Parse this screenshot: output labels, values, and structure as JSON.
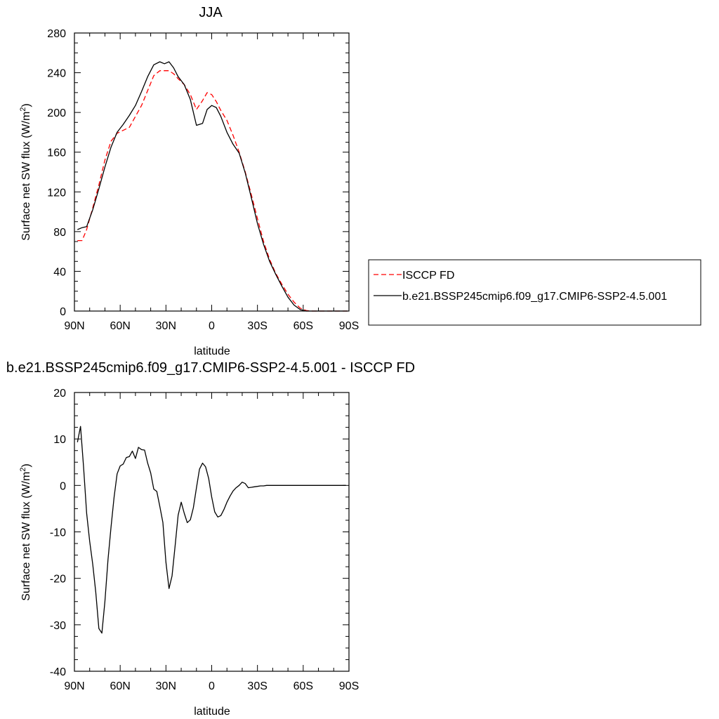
{
  "chart_data": [
    {
      "type": "line",
      "title": "JJA",
      "xlabel": "latitude",
      "ylabel": "Surface net SW flux (W/m",
      "ylabel_sup": "2",
      "ylabel_tail": ")",
      "xlim": [
        90,
        -90
      ],
      "ylim": [
        0,
        280
      ],
      "xticks": [
        90,
        60,
        30,
        0,
        -30,
        -60,
        -90
      ],
      "xtick_labels": [
        "90N",
        "60N",
        "30N",
        "0",
        "30S",
        "60S",
        "90S"
      ],
      "yticks": [
        0,
        40,
        80,
        120,
        160,
        200,
        240,
        280
      ],
      "ytick_labels": [
        "0",
        "40",
        "80",
        "120",
        "160",
        "200",
        "240",
        "280"
      ],
      "legend": "right",
      "series": [
        {
          "name": "ISCCP FD",
          "color": "#ff0000",
          "dash": "dashed",
          "x": [
            88,
            85,
            82,
            78,
            74,
            70,
            66,
            62,
            58,
            54,
            50,
            46,
            42,
            38,
            34,
            31,
            28,
            25,
            22,
            18,
            14,
            10,
            6,
            3,
            0,
            -3,
            -6,
            -10,
            -14,
            -18,
            -22,
            -26,
            -30,
            -34,
            -38,
            -42,
            -46,
            -50,
            -54,
            -58,
            -62,
            -66,
            -70,
            -74,
            -78,
            -82,
            -86,
            -89
          ],
          "values": [
            71,
            71,
            82,
            104,
            127,
            152,
            171,
            179,
            182,
            185,
            196,
            207,
            222,
            237,
            242,
            242,
            242,
            239,
            234,
            228,
            218,
            203,
            212,
            220,
            218,
            211,
            202,
            192,
            177,
            160,
            140,
            117,
            93,
            70,
            52,
            38,
            27,
            17,
            9,
            3,
            0.5,
            0,
            0,
            0,
            0,
            0,
            0,
            0
          ]
        },
        {
          "name": "b.e21.BSSP245cmip6.f09_g17.CMIP6-SSP2-4.5.001",
          "color": "#000000",
          "dash": "solid",
          "x": [
            88,
            85,
            82,
            78,
            74,
            70,
            66,
            62,
            58,
            54,
            50,
            46,
            42,
            38,
            34,
            31,
            28,
            25,
            22,
            18,
            14,
            10,
            6,
            3,
            0,
            -3,
            -6,
            -10,
            -14,
            -18,
            -22,
            -26,
            -30,
            -34,
            -38,
            -42,
            -46,
            -50,
            -54,
            -58,
            -62,
            -66,
            -70,
            -74,
            -78,
            -82,
            -86,
            -89
          ],
          "values": [
            82,
            84,
            85,
            102,
            123,
            145,
            165,
            180,
            188,
            197,
            207,
            221,
            236,
            248,
            251,
            249,
            251,
            245,
            236,
            228,
            213,
            187,
            189,
            203,
            207,
            205,
            196,
            180,
            168,
            159,
            139,
            114,
            88,
            67,
            50,
            37,
            25,
            14,
            6,
            1.5,
            0,
            0,
            0,
            0,
            0,
            0,
            0,
            0
          ]
        }
      ]
    },
    {
      "type": "line",
      "title": "b.e21.BSSP245cmip6.f09_g17.CMIP6-SSP2-4.5.001 - ISCCP FD",
      "xlabel": "latitude",
      "ylabel": "Surface net SW flux (W/m",
      "ylabel_sup": "2",
      "ylabel_tail": ")",
      "xlim": [
        90,
        -90
      ],
      "ylim": [
        -40,
        20
      ],
      "xticks": [
        90,
        60,
        30,
        0,
        -30,
        -60,
        -90
      ],
      "xtick_labels": [
        "90N",
        "60N",
        "30N",
        "0",
        "30S",
        "60S",
        "90S"
      ],
      "yticks": [
        -40,
        -30,
        -20,
        -10,
        0,
        10,
        20
      ],
      "ytick_labels": [
        "-40",
        "-30",
        "-20",
        "-10",
        "0",
        "10",
        "20"
      ],
      "series": [
        {
          "color": "#000000",
          "dash": "solid",
          "x": [
            88,
            86,
            84,
            82,
            80,
            78,
            76,
            74,
            72,
            70,
            68,
            66,
            64,
            62,
            60,
            58,
            56,
            54,
            52,
            50,
            48,
            46,
            44,
            42,
            40,
            38,
            36,
            34,
            32,
            30,
            28,
            26,
            24,
            22,
            20,
            18,
            16,
            14,
            12,
            10,
            8,
            6,
            4,
            2,
            0,
            -2,
            -4,
            -6,
            -8,
            -10,
            -12,
            -14,
            -16,
            -18,
            -20,
            -22,
            -24,
            -26,
            -28,
            -30,
            -32,
            -34,
            -36,
            -38,
            -40,
            -42,
            -44,
            -46,
            -48,
            -50,
            -52,
            -54,
            -56,
            -58,
            -60,
            -62,
            -64,
            -66,
            -68,
            -70,
            -72,
            -74,
            -76,
            -78,
            -80,
            -82,
            -84,
            -86,
            -88
          ],
          "values": [
            9.3,
            12.7,
            4,
            -6,
            -12,
            -17,
            -23,
            -30.8,
            -31.8,
            -25,
            -16,
            -9,
            -2.5,
            2.5,
            4.2,
            4.6,
            6,
            6.2,
            7.4,
            5.8,
            8.2,
            7.7,
            7.6,
            4.8,
            2.7,
            -0.8,
            -1.3,
            -4.5,
            -8,
            -16.5,
            -22.2,
            -19.5,
            -13,
            -6.4,
            -3.6,
            -6,
            -8,
            -7.4,
            -4.8,
            -0.5,
            3.5,
            4.8,
            4,
            1.5,
            -2.5,
            -5.7,
            -6.8,
            -6.5,
            -5.2,
            -3.6,
            -2.3,
            -1.2,
            -0.5,
            0,
            0.7,
            0.4,
            -0.5,
            -0.4,
            -0.3,
            -0.2,
            -0.1,
            -0.1,
            0,
            0,
            0,
            0,
            0,
            0,
            0,
            0,
            0,
            0,
            0,
            0,
            0,
            0,
            0,
            0,
            0,
            0,
            0,
            0,
            0,
            0,
            0,
            0,
            0,
            0,
            0
          ]
        }
      ]
    }
  ]
}
